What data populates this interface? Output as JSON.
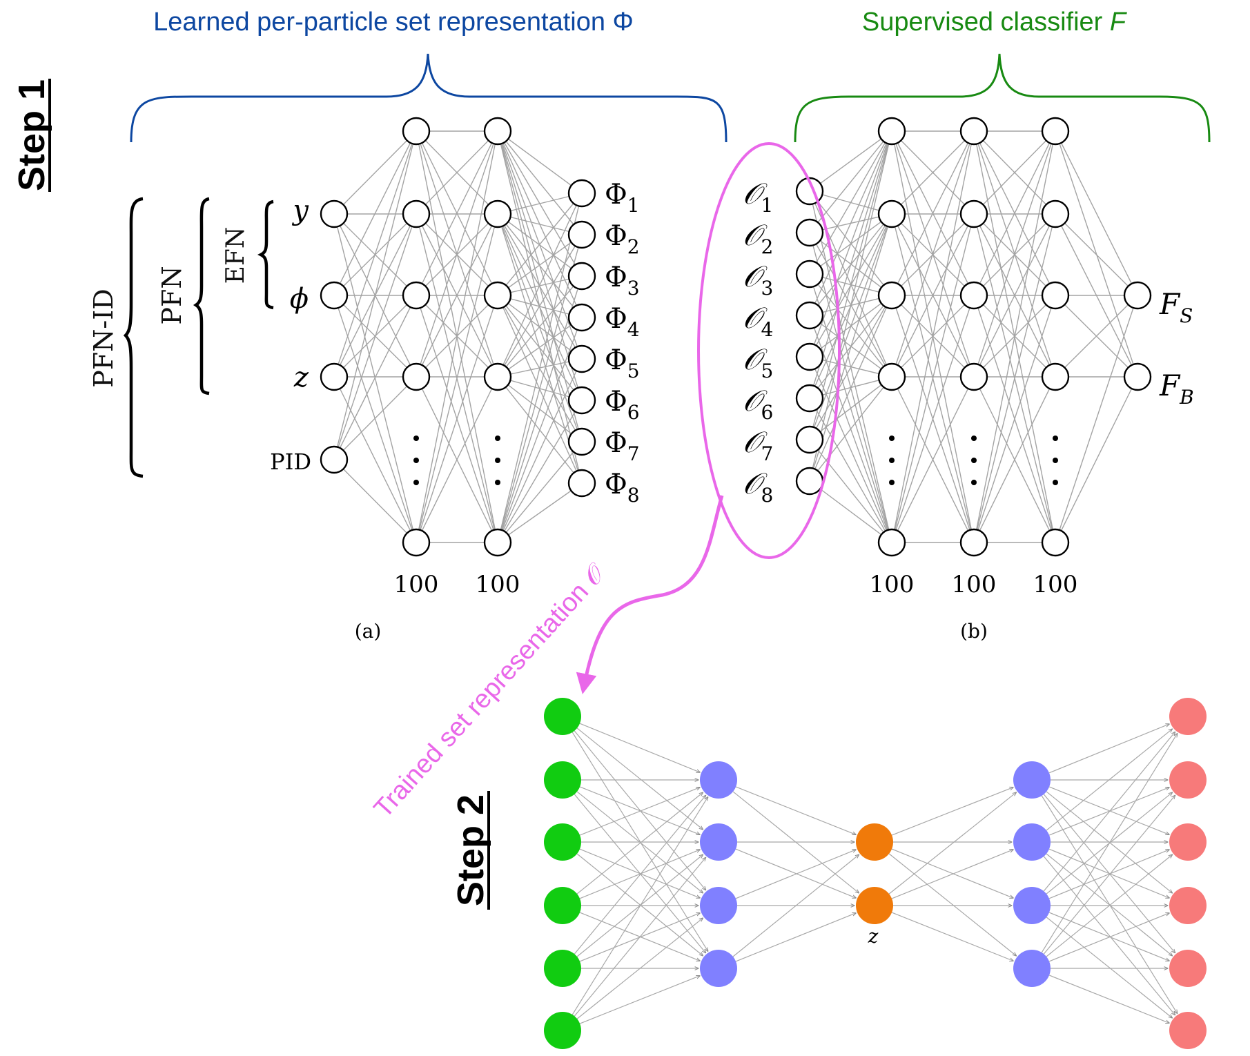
{
  "colors": {
    "blue": "#0d47a1",
    "green": "#188a12",
    "magenta": "#e967e9",
    "input_green": "#11cc11",
    "hidden_purple": "#8080ff",
    "latent_orange": "#f07a0a",
    "output_red": "#f77a7a"
  },
  "header": {
    "phi_title": "Learned per-particle set representation Φ",
    "f_title_prefix": "Supervised classifier ",
    "f_title_var": "F"
  },
  "steps": {
    "step1": "Step 1",
    "step2": "Step 2"
  },
  "brackets": {
    "pfn_id": "PFN-ID",
    "pfn": "PFN",
    "efn": "EFN"
  },
  "network_a": {
    "caption": "(a)",
    "inputs": [
      "y",
      "ϕ",
      "z",
      "PID"
    ],
    "hidden_sizes": [
      "100",
      "100"
    ],
    "outputs": [
      {
        "sym": "Φ",
        "sub": "1"
      },
      {
        "sym": "Φ",
        "sub": "2"
      },
      {
        "sym": "Φ",
        "sub": "3"
      },
      {
        "sym": "Φ",
        "sub": "4"
      },
      {
        "sym": "Φ",
        "sub": "5"
      },
      {
        "sym": "Φ",
        "sub": "6"
      },
      {
        "sym": "Φ",
        "sub": "7"
      },
      {
        "sym": "Φ",
        "sub": "8"
      }
    ]
  },
  "network_b": {
    "caption": "(b)",
    "inputs": [
      {
        "sym": "𝒪",
        "sub": "1"
      },
      {
        "sym": "𝒪",
        "sub": "2"
      },
      {
        "sym": "𝒪",
        "sub": "3"
      },
      {
        "sym": "𝒪",
        "sub": "4"
      },
      {
        "sym": "𝒪",
        "sub": "5"
      },
      {
        "sym": "𝒪",
        "sub": "6"
      },
      {
        "sym": "𝒪",
        "sub": "7"
      },
      {
        "sym": "𝒪",
        "sub": "8"
      }
    ],
    "hidden_sizes": [
      "100",
      "100",
      "100"
    ],
    "outputs": [
      {
        "sym": "F",
        "sub": "S"
      },
      {
        "sym": "F",
        "sub": "B"
      }
    ]
  },
  "trained_label": "Trained set representation 𝒪",
  "autoencoder": {
    "latent_label": "z"
  }
}
